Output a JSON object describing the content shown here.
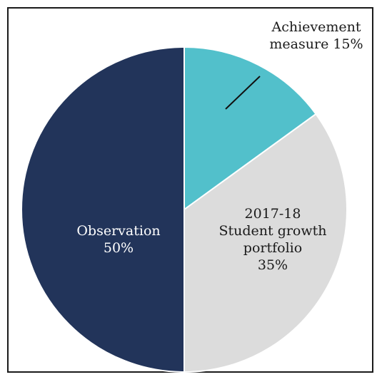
{
  "chart_data": {
    "type": "pie",
    "title": "",
    "slices": [
      {
        "name": "Achievement measure",
        "value": 15,
        "value_label": "15%",
        "color": "#52c0cb",
        "label_lines": [
          "Achievement",
          "measure 15%"
        ],
        "label_color": "#1a1a1a"
      },
      {
        "name": "2017-18 Student growth portfolio",
        "value": 35,
        "value_label": "35%",
        "color": "#dcdcdc",
        "label_lines": [
          "2017-18",
          "Student growth",
          "portfolio",
          "35%"
        ],
        "label_color": "#1a1a1a"
      },
      {
        "name": "Observation",
        "value": 50,
        "value_label": "50%",
        "color": "#22345a",
        "label_lines": [
          "Observation",
          "50%"
        ],
        "label_color": "#ffffff"
      }
    ],
    "start_angle_deg": 0,
    "direction": "clockwise",
    "legend": "none",
    "slice_border_color": "#ffffff"
  }
}
